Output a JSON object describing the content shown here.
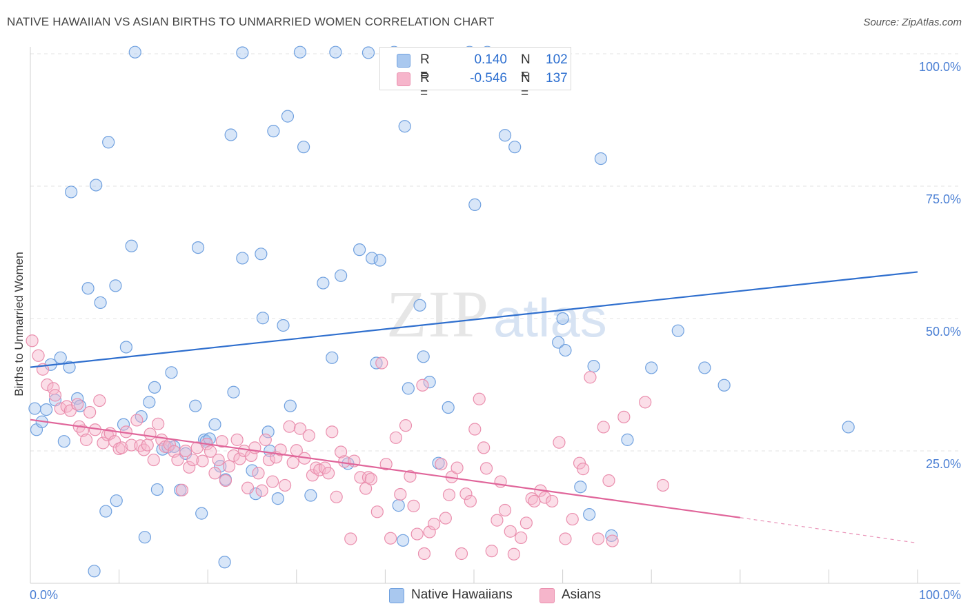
{
  "title": "NATIVE HAWAIIAN VS ASIAN BIRTHS TO UNMARRIED WOMEN CORRELATION CHART",
  "source": "Source: ZipAtlas.com",
  "watermark": {
    "zip": "ZIP",
    "atlas": "atlas"
  },
  "legend_top": {
    "rows": [
      {
        "r_label": "R =",
        "r_value": "0.140",
        "n_label": "N =",
        "n_value": "102"
      },
      {
        "r_label": "R =",
        "r_value": "-0.546",
        "n_label": "N =",
        "n_value": "137"
      }
    ]
  },
  "legend_bottom": [
    "Native Hawaiians",
    "Asians"
  ],
  "colors": {
    "blue_fill": "#a9c8ef",
    "blue_stroke": "#6fa0df",
    "blue_line": "#2f6fce",
    "pink_fill": "#f6b5cb",
    "pink_stroke": "#ea8fae",
    "pink_line": "#e0659a",
    "axis_text": "#4a7fd4",
    "grid": "#e3e3e3"
  },
  "chart_data": {
    "type": "scatter",
    "title": "NATIVE HAWAIIAN VS ASIAN BIRTHS TO UNMARRIED WOMEN CORRELATION CHART",
    "xlabel": "",
    "ylabel": "Births to Unmarried Women",
    "xlim": [
      0,
      100
    ],
    "ylim": [
      0,
      100
    ],
    "x_tick_labels": [
      "0.0%",
      "100.0%"
    ],
    "y_tick_labels": [
      "25.0%",
      "50.0%",
      "75.0%",
      "100.0%"
    ],
    "y_tick_values": [
      25,
      50,
      75,
      100
    ],
    "series": [
      {
        "name": "Native Hawaiians",
        "r": 0.14,
        "n": 102,
        "trend": {
          "x": [
            0,
            100
          ],
          "y": [
            40.8,
            58.8
          ]
        },
        "points": [
          [
            0.5,
            33
          ],
          [
            0.7,
            29
          ],
          [
            1.3,
            30.5
          ],
          [
            1.8,
            32.8
          ],
          [
            2.3,
            41.3
          ],
          [
            2.8,
            34.6
          ],
          [
            3.4,
            42.6
          ],
          [
            3.8,
            26.8
          ],
          [
            4.4,
            40.8
          ],
          [
            4.6,
            73.9
          ],
          [
            5.3,
            34.9
          ],
          [
            5.6,
            33.5
          ],
          [
            6.5,
            55.7
          ],
          [
            7.2,
            2.3
          ],
          [
            7.4,
            75.2
          ],
          [
            7.9,
            53
          ],
          [
            8.5,
            13.6
          ],
          [
            8.8,
            83.3
          ],
          [
            9.6,
            56.2
          ],
          [
            9.7,
            15.6
          ],
          [
            10.5,
            30
          ],
          [
            10.8,
            44.6
          ],
          [
            11.4,
            63.7
          ],
          [
            11.8,
            100.3
          ],
          [
            12.5,
            31.5
          ],
          [
            12.9,
            8.7
          ],
          [
            13.4,
            34.2
          ],
          [
            14.0,
            37
          ],
          [
            14.3,
            17.7
          ],
          [
            14.9,
            25.3
          ],
          [
            15.5,
            25.7
          ],
          [
            15.9,
            39.8
          ],
          [
            16.2,
            25.8
          ],
          [
            16.9,
            17.6
          ],
          [
            17.5,
            24.5
          ],
          [
            18.6,
            33.5
          ],
          [
            18.9,
            63.4
          ],
          [
            19.3,
            13.2
          ],
          [
            19.6,
            27.1
          ],
          [
            19.8,
            26.8
          ],
          [
            20.2,
            27.3
          ],
          [
            20.8,
            30
          ],
          [
            21.4,
            22.1
          ],
          [
            21.9,
            4
          ],
          [
            22.0,
            19.6
          ],
          [
            22.6,
            84.7
          ],
          [
            22.9,
            36.1
          ],
          [
            23.9,
            100.2
          ],
          [
            23.9,
            61.4
          ],
          [
            25.0,
            21.3
          ],
          [
            25.4,
            16.9
          ],
          [
            26.0,
            62.2
          ],
          [
            26.2,
            50.1
          ],
          [
            26.8,
            28.6
          ],
          [
            27.0,
            25
          ],
          [
            27.4,
            85.4
          ],
          [
            27.9,
            16
          ],
          [
            28.5,
            48.7
          ],
          [
            29.0,
            88.2
          ],
          [
            29.3,
            33.5
          ],
          [
            30.4,
            100.3
          ],
          [
            30.8,
            82.4
          ],
          [
            31.6,
            16.6
          ],
          [
            33.0,
            56.7
          ],
          [
            34.0,
            42.6
          ],
          [
            34.4,
            100.3
          ],
          [
            35.0,
            58.1
          ],
          [
            35.8,
            22.6
          ],
          [
            37.1,
            63
          ],
          [
            38.1,
            100.2
          ],
          [
            38.5,
            61.4
          ],
          [
            39.0,
            41.6
          ],
          [
            39.4,
            61
          ],
          [
            41.0,
            100.3
          ],
          [
            41.5,
            14.7
          ],
          [
            42.0,
            8.1
          ],
          [
            42.2,
            86.3
          ],
          [
            42.6,
            36.8
          ],
          [
            43.9,
            52.5
          ],
          [
            44.3,
            42.8
          ],
          [
            45.0,
            38
          ],
          [
            46.0,
            22.7
          ],
          [
            47.1,
            33.2
          ],
          [
            49.5,
            100.3
          ],
          [
            50.1,
            71.5
          ],
          [
            51.5,
            100.3
          ],
          [
            53.5,
            84.6
          ],
          [
            54.6,
            82.4
          ],
          [
            59.5,
            45.5
          ],
          [
            60.0,
            50
          ],
          [
            60.3,
            44
          ],
          [
            62.0,
            18.2
          ],
          [
            63.0,
            13
          ],
          [
            63.5,
            41
          ],
          [
            64.3,
            80.2
          ],
          [
            65.5,
            9
          ],
          [
            67.3,
            27.1
          ],
          [
            70.0,
            40.7
          ],
          [
            73.0,
            47.7
          ],
          [
            76.0,
            40.7
          ],
          [
            78.2,
            37.4
          ],
          [
            92.2,
            29.5
          ]
        ]
      },
      {
        "name": "Asians",
        "r": -0.546,
        "n": 137,
        "trend": {
          "x": [
            0,
            80
          ],
          "y": [
            30.9,
            12.4
          ]
        },
        "trend_dashed": {
          "x": [
            80,
            100
          ],
          "y": [
            12.4,
            7.6
          ]
        },
        "points": [
          [
            0.2,
            45.8
          ],
          [
            0.9,
            43
          ],
          [
            1.4,
            40.4
          ],
          [
            1.9,
            37.5
          ],
          [
            2.6,
            36.8
          ],
          [
            2.8,
            35.5
          ],
          [
            3.4,
            33
          ],
          [
            4.1,
            33.4
          ],
          [
            4.5,
            32.6
          ],
          [
            5.3,
            33.8
          ],
          [
            5.5,
            29.6
          ],
          [
            5.9,
            28.8
          ],
          [
            6.3,
            27.1
          ],
          [
            6.7,
            32.3
          ],
          [
            7.3,
            29
          ],
          [
            7.8,
            34.5
          ],
          [
            8.2,
            26.5
          ],
          [
            8.7,
            28
          ],
          [
            9.0,
            28.3
          ],
          [
            9.5,
            26.8
          ],
          [
            10.0,
            25.4
          ],
          [
            10.3,
            25.6
          ],
          [
            10.8,
            28.6
          ],
          [
            11.4,
            26.1
          ],
          [
            12.0,
            30.8
          ],
          [
            12.4,
            26
          ],
          [
            12.8,
            25.2
          ],
          [
            13.2,
            26.1
          ],
          [
            13.5,
            28.2
          ],
          [
            13.9,
            23.3
          ],
          [
            14.4,
            30.1
          ],
          [
            14.8,
            27.1
          ],
          [
            15.2,
            25.8
          ],
          [
            15.7,
            26.2
          ],
          [
            16.2,
            24.9
          ],
          [
            16.6,
            23.3
          ],
          [
            17.1,
            17.6
          ],
          [
            17.5,
            25
          ],
          [
            17.9,
            21.9
          ],
          [
            18.3,
            23.3
          ],
          [
            18.8,
            25.6
          ],
          [
            19.4,
            23.1
          ],
          [
            19.9,
            26.3
          ],
          [
            20.3,
            24.9
          ],
          [
            20.8,
            20.8
          ],
          [
            21.2,
            23.3
          ],
          [
            21.6,
            26.8
          ],
          [
            22.0,
            19.4
          ],
          [
            22.4,
            22.1
          ],
          [
            22.9,
            24.1
          ],
          [
            23.3,
            27.1
          ],
          [
            23.6,
            23.5
          ],
          [
            24.1,
            25
          ],
          [
            24.5,
            18
          ],
          [
            24.9,
            24.1
          ],
          [
            25.3,
            25.6
          ],
          [
            25.7,
            20.8
          ],
          [
            26.1,
            17.5
          ],
          [
            26.5,
            27.1
          ],
          [
            26.9,
            23.3
          ],
          [
            27.3,
            19.2
          ],
          [
            27.7,
            23.8
          ],
          [
            28.2,
            25.2
          ],
          [
            28.7,
            18.5
          ],
          [
            29.2,
            29.6
          ],
          [
            29.6,
            22.8
          ],
          [
            30.0,
            25.1
          ],
          [
            30.4,
            29.2
          ],
          [
            30.9,
            23.6
          ],
          [
            31.4,
            27.9
          ],
          [
            31.8,
            20.4
          ],
          [
            32.2,
            21.8
          ],
          [
            32.6,
            21.4
          ],
          [
            33.2,
            21.8
          ],
          [
            33.6,
            20.8
          ],
          [
            34.0,
            28.6
          ],
          [
            34.5,
            16.3
          ],
          [
            35.0,
            24.8
          ],
          [
            35.4,
            23
          ],
          [
            36.1,
            8.4
          ],
          [
            36.5,
            23.1
          ],
          [
            37.2,
            20
          ],
          [
            37.8,
            17.9
          ],
          [
            38.1,
            20
          ],
          [
            38.4,
            19.7
          ],
          [
            39.1,
            13.5
          ],
          [
            39.6,
            41.6
          ],
          [
            40.1,
            22.5
          ],
          [
            40.6,
            8.5
          ],
          [
            41.2,
            27.5
          ],
          [
            41.7,
            16.8
          ],
          [
            42.3,
            29.8
          ],
          [
            42.8,
            20.2
          ],
          [
            43.2,
            14.6
          ],
          [
            43.6,
            9.3
          ],
          [
            44.2,
            37.4
          ],
          [
            44.4,
            5.6
          ],
          [
            45.0,
            9.7
          ],
          [
            45.5,
            11.2
          ],
          [
            46.3,
            22.5
          ],
          [
            46.8,
            12.3
          ],
          [
            47.2,
            16.7
          ],
          [
            47.5,
            20.1
          ],
          [
            48.1,
            21.8
          ],
          [
            48.6,
            5.6
          ],
          [
            49.1,
            16.9
          ],
          [
            49.6,
            15.5
          ],
          [
            50.1,
            29.1
          ],
          [
            50.6,
            34.8
          ],
          [
            51.1,
            25.6
          ],
          [
            51.4,
            21.7
          ],
          [
            52.0,
            6.1
          ],
          [
            52.6,
            11.9
          ],
          [
            53.0,
            19.2
          ],
          [
            53.5,
            13.8
          ],
          [
            54.1,
            9.8
          ],
          [
            54.5,
            5.5
          ],
          [
            55.3,
            8.6
          ],
          [
            55.9,
            11.4
          ],
          [
            56.5,
            16
          ],
          [
            56.8,
            15.5
          ],
          [
            57.5,
            17.5
          ],
          [
            58.0,
            16.2
          ],
          [
            58.8,
            15.5
          ],
          [
            59.6,
            26.6
          ],
          [
            60.3,
            8.4
          ],
          [
            61.1,
            12.1
          ],
          [
            61.9,
            22.7
          ],
          [
            62.3,
            21.6
          ],
          [
            63.1,
            38.9
          ],
          [
            64.0,
            8.4
          ],
          [
            64.6,
            29.5
          ],
          [
            65.2,
            19.4
          ],
          [
            65.6,
            8
          ],
          [
            66.9,
            31.4
          ],
          [
            69.3,
            34.2
          ],
          [
            71.3,
            18.5
          ]
        ]
      }
    ]
  }
}
